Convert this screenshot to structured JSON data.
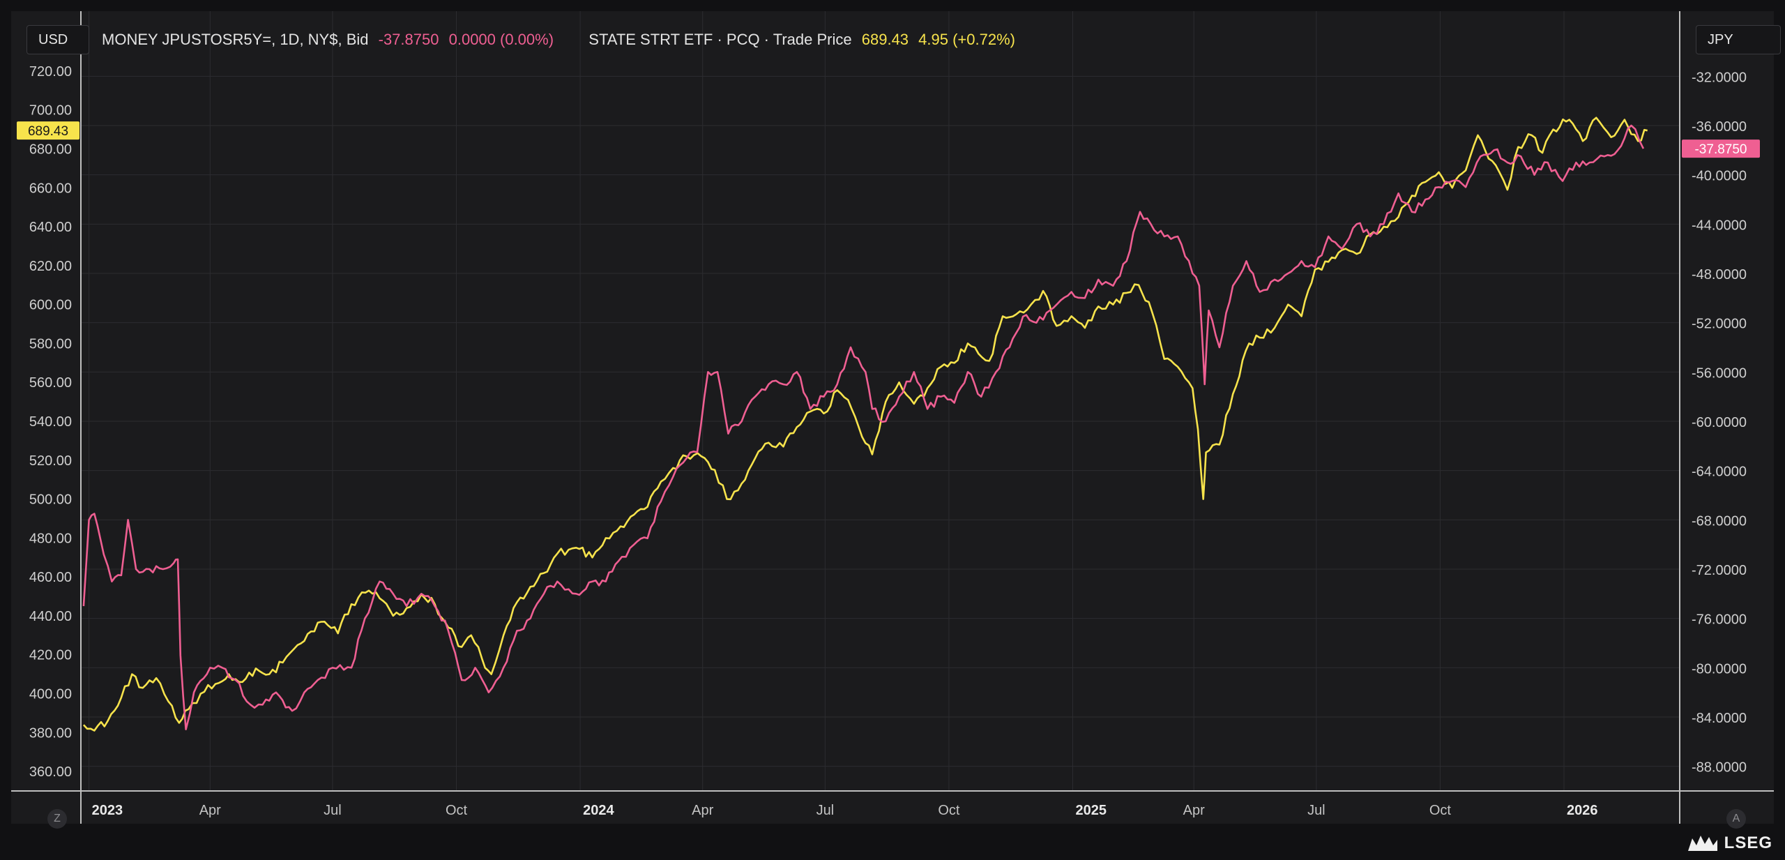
{
  "left_currency": "USD",
  "right_currency": "JPY",
  "legend": {
    "series1_name": "MONEY JPUSTOSR5Y=, 1D, NY$, Bid",
    "series1_value": "-37.8750",
    "series1_change": "0.0000 (0.00%)",
    "series2_name": "STATE STRT ETF · PCQ · Trade Price",
    "series2_value": "689.43",
    "series2_change": "4.95 (+0.72%)"
  },
  "buttons": {
    "zoom": "Z",
    "auto": "A"
  },
  "brand": "LSEG",
  "colors": {
    "pink": "#ef5f92",
    "yellow": "#f7e34c",
    "background": "#1b1b1d",
    "grid": "#2c2c30"
  },
  "chart_data": {
    "type": "line",
    "x_ticks": [
      "2023",
      "Apr",
      "Jul",
      "Oct",
      "2024",
      "Apr",
      "Jul",
      "Oct",
      "2025",
      "Apr",
      "Jul",
      "Oct",
      "2026"
    ],
    "x_ticks_bold": [
      true,
      false,
      false,
      false,
      true,
      false,
      false,
      false,
      true,
      false,
      false,
      false,
      true
    ],
    "left_axis": {
      "label": "USD",
      "ylim": [
        350,
        730
      ],
      "ticks": [
        360,
        380,
        400,
        420,
        440,
        460,
        480,
        500,
        520,
        540,
        560,
        580,
        600,
        620,
        640,
        660,
        680,
        700,
        720
      ],
      "last_value_label": "689.43"
    },
    "right_axis": {
      "label": "JPY",
      "ylim": [
        -90,
        -30
      ],
      "ticks": [
        -88,
        -84,
        -80,
        -76,
        -72,
        -68,
        -64,
        -60,
        -56,
        -52,
        -48,
        -44,
        -40,
        -36,
        -32
      ],
      "last_value_label": "-37.8750"
    },
    "series": [
      {
        "name": "STATE STRT ETF · PCQ · Trade Price",
        "axis": "left",
        "color": "#f7e34c",
        "points": [
          [
            "2022-12-28",
            384
          ],
          [
            "2023-01-05",
            381
          ],
          [
            "2023-01-15",
            386
          ],
          [
            "2023-01-25",
            398
          ],
          [
            "2023-02-02",
            410
          ],
          [
            "2023-02-10",
            403
          ],
          [
            "2023-02-20",
            408
          ],
          [
            "2023-03-01",
            396
          ],
          [
            "2023-03-09",
            385
          ],
          [
            "2023-03-16",
            392
          ],
          [
            "2023-03-25",
            400
          ],
          [
            "2023-04-05",
            405
          ],
          [
            "2023-04-15",
            410
          ],
          [
            "2023-04-25",
            406
          ],
          [
            "2023-05-05",
            413
          ],
          [
            "2023-05-15",
            410
          ],
          [
            "2023-05-25",
            416
          ],
          [
            "2023-06-05",
            425
          ],
          [
            "2023-06-15",
            432
          ],
          [
            "2023-06-25",
            437
          ],
          [
            "2023-07-05",
            431
          ],
          [
            "2023-07-15",
            446
          ],
          [
            "2023-07-28",
            453
          ],
          [
            "2023-08-05",
            449
          ],
          [
            "2023-08-15",
            440
          ],
          [
            "2023-08-25",
            444
          ],
          [
            "2023-09-05",
            451
          ],
          [
            "2023-09-15",
            446
          ],
          [
            "2023-09-25",
            434
          ],
          [
            "2023-10-05",
            424
          ],
          [
            "2023-10-12",
            430
          ],
          [
            "2023-10-20",
            418
          ],
          [
            "2023-10-27",
            410
          ],
          [
            "2023-11-05",
            430
          ],
          [
            "2023-11-15",
            447
          ],
          [
            "2023-11-25",
            455
          ],
          [
            "2023-12-05",
            462
          ],
          [
            "2023-12-15",
            472
          ],
          [
            "2023-12-29",
            475
          ],
          [
            "2024-01-10",
            470
          ],
          [
            "2024-01-20",
            480
          ],
          [
            "2024-01-31",
            486
          ],
          [
            "2024-02-10",
            492
          ],
          [
            "2024-02-20",
            496
          ],
          [
            "2024-03-01",
            509
          ],
          [
            "2024-03-10",
            516
          ],
          [
            "2024-03-20",
            522
          ],
          [
            "2024-03-31",
            522
          ],
          [
            "2024-04-10",
            515
          ],
          [
            "2024-04-19",
            500
          ],
          [
            "2024-04-30",
            508
          ],
          [
            "2024-05-10",
            521
          ],
          [
            "2024-05-20",
            529
          ],
          [
            "2024-05-31",
            527
          ],
          [
            "2024-06-10",
            537
          ],
          [
            "2024-06-20",
            545
          ],
          [
            "2024-06-30",
            544
          ],
          [
            "2024-07-10",
            556
          ],
          [
            "2024-07-18",
            551
          ],
          [
            "2024-07-26",
            537
          ],
          [
            "2024-08-05",
            523
          ],
          [
            "2024-08-15",
            550
          ],
          [
            "2024-08-25",
            560
          ],
          [
            "2024-09-05",
            549
          ],
          [
            "2024-09-15",
            557
          ],
          [
            "2024-09-25",
            568
          ],
          [
            "2024-10-05",
            570
          ],
          [
            "2024-10-15",
            580
          ],
          [
            "2024-10-31",
            571
          ],
          [
            "2024-11-10",
            594
          ],
          [
            "2024-11-20",
            595
          ],
          [
            "2024-12-01",
            600
          ],
          [
            "2024-12-10",
            607
          ],
          [
            "2024-12-20",
            589
          ],
          [
            "2024-12-31",
            594
          ],
          [
            "2025-01-10",
            588
          ],
          [
            "2025-01-20",
            599
          ],
          [
            "2025-01-31",
            600
          ],
          [
            "2025-02-10",
            606
          ],
          [
            "2025-02-19",
            610
          ],
          [
            "2025-03-01",
            596
          ],
          [
            "2025-03-10",
            572
          ],
          [
            "2025-03-20",
            568
          ],
          [
            "2025-03-31",
            557
          ],
          [
            "2025-04-04",
            536
          ],
          [
            "2025-04-08",
            500
          ],
          [
            "2025-04-10",
            524
          ],
          [
            "2025-04-20",
            528
          ],
          [
            "2025-04-30",
            554
          ],
          [
            "2025-05-12",
            580
          ],
          [
            "2025-05-20",
            583
          ],
          [
            "2025-05-31",
            588
          ],
          [
            "2025-06-10",
            600
          ],
          [
            "2025-06-20",
            594
          ],
          [
            "2025-06-30",
            618
          ],
          [
            "2025-07-10",
            622
          ],
          [
            "2025-07-20",
            628
          ],
          [
            "2025-07-31",
            626
          ],
          [
            "2025-08-10",
            636
          ],
          [
            "2025-08-20",
            640
          ],
          [
            "2025-08-31",
            645
          ],
          [
            "2025-09-10",
            656
          ],
          [
            "2025-09-20",
            663
          ],
          [
            "2025-09-30",
            668
          ],
          [
            "2025-10-10",
            660
          ],
          [
            "2025-10-20",
            669
          ],
          [
            "2025-10-29",
            687
          ],
          [
            "2025-11-06",
            675
          ],
          [
            "2025-11-14",
            668
          ],
          [
            "2025-11-20",
            659
          ],
          [
            "2025-11-28",
            681
          ],
          [
            "2025-12-08",
            687
          ],
          [
            "2025-12-16",
            678
          ],
          [
            "2025-12-24",
            690
          ],
          [
            "2026-01-05",
            695
          ],
          [
            "2026-01-15",
            684
          ],
          [
            "2026-01-25",
            696
          ],
          [
            "2026-02-05",
            686
          ],
          [
            "2026-02-15",
            695
          ],
          [
            "2026-02-25",
            684
          ],
          [
            "2026-03-04",
            689.43
          ]
        ]
      },
      {
        "name": "MONEY JPUSTOSR5Y=, 1D, NY$, Bid",
        "axis": "right",
        "color": "#ef5f92",
        "points": [
          [
            "2022-12-28",
            -75
          ],
          [
            "2023-01-01",
            -68
          ],
          [
            "2023-01-05",
            -67.5
          ],
          [
            "2023-01-12",
            -70.8
          ],
          [
            "2023-01-18",
            -73
          ],
          [
            "2023-01-25",
            -72.5
          ],
          [
            "2023-01-30",
            -68
          ],
          [
            "2023-02-05",
            -72
          ],
          [
            "2023-02-15",
            -72
          ],
          [
            "2023-02-25",
            -72
          ],
          [
            "2023-03-05",
            -71.5
          ],
          [
            "2023-03-08",
            -71.2
          ],
          [
            "2023-03-10",
            -79
          ],
          [
            "2023-03-14",
            -85
          ],
          [
            "2023-03-20",
            -82
          ],
          [
            "2023-04-01",
            -80
          ],
          [
            "2023-04-10",
            -80
          ],
          [
            "2023-04-20",
            -81
          ],
          [
            "2023-05-01",
            -83
          ],
          [
            "2023-05-10",
            -83
          ],
          [
            "2023-05-20",
            -82
          ],
          [
            "2023-06-01",
            -83.5
          ],
          [
            "2023-06-10",
            -82
          ],
          [
            "2023-06-20",
            -81
          ],
          [
            "2023-07-01",
            -80
          ],
          [
            "2023-07-15",
            -80
          ],
          [
            "2023-07-25",
            -76
          ],
          [
            "2023-08-05",
            -73
          ],
          [
            "2023-08-15",
            -74
          ],
          [
            "2023-08-25",
            -75
          ],
          [
            "2023-09-05",
            -74
          ],
          [
            "2023-09-15",
            -75
          ],
          [
            "2023-09-25",
            -77
          ],
          [
            "2023-10-05",
            -81
          ],
          [
            "2023-10-15",
            -80
          ],
          [
            "2023-10-25",
            -82
          ],
          [
            "2023-11-05",
            -80
          ],
          [
            "2023-11-15",
            -77
          ],
          [
            "2023-11-25",
            -76
          ],
          [
            "2023-12-05",
            -74
          ],
          [
            "2023-12-15",
            -73
          ],
          [
            "2023-12-29",
            -74
          ],
          [
            "2024-01-10",
            -73
          ],
          [
            "2024-01-20",
            -73
          ],
          [
            "2024-02-01",
            -71
          ],
          [
            "2024-02-10",
            -70
          ],
          [
            "2024-02-20",
            -69.5
          ],
          [
            "2024-03-01",
            -66.5
          ],
          [
            "2024-03-10",
            -64.5
          ],
          [
            "2024-03-20",
            -63
          ],
          [
            "2024-03-28",
            -62.5
          ],
          [
            "2024-04-05",
            -56
          ],
          [
            "2024-04-12",
            -56
          ],
          [
            "2024-04-20",
            -61
          ],
          [
            "2024-04-30",
            -60
          ],
          [
            "2024-05-10",
            -58
          ],
          [
            "2024-05-20",
            -57
          ],
          [
            "2024-05-31",
            -57
          ],
          [
            "2024-06-10",
            -56
          ],
          [
            "2024-06-20",
            -59
          ],
          [
            "2024-06-30",
            -58
          ],
          [
            "2024-07-10",
            -57
          ],
          [
            "2024-07-20",
            -54
          ],
          [
            "2024-07-31",
            -56
          ],
          [
            "2024-08-05",
            -59
          ],
          [
            "2024-08-15",
            -60
          ],
          [
            "2024-08-25",
            -58
          ],
          [
            "2024-09-05",
            -56
          ],
          [
            "2024-09-15",
            -59
          ],
          [
            "2024-09-25",
            -58
          ],
          [
            "2024-10-05",
            -58.5
          ],
          [
            "2024-10-15",
            -56
          ],
          [
            "2024-10-25",
            -58
          ],
          [
            "2024-11-05",
            -56
          ],
          [
            "2024-11-15",
            -54
          ],
          [
            "2024-11-25",
            -51.5
          ],
          [
            "2024-12-05",
            -52
          ],
          [
            "2024-12-15",
            -51
          ],
          [
            "2024-12-31",
            -49.5
          ],
          [
            "2025-01-10",
            -50
          ],
          [
            "2025-01-20",
            -48.5
          ],
          [
            "2025-01-31",
            -49
          ],
          [
            "2025-02-10",
            -47
          ],
          [
            "2025-02-20",
            -43
          ],
          [
            "2025-02-28",
            -44
          ],
          [
            "2025-03-10",
            -45
          ],
          [
            "2025-03-20",
            -45
          ],
          [
            "2025-03-31",
            -48
          ],
          [
            "2025-04-05",
            -49
          ],
          [
            "2025-04-09",
            -57
          ],
          [
            "2025-04-12",
            -51
          ],
          [
            "2025-04-20",
            -54
          ],
          [
            "2025-04-30",
            -49
          ],
          [
            "2025-05-10",
            -47
          ],
          [
            "2025-05-20",
            -49.5
          ],
          [
            "2025-05-31",
            -48.5
          ],
          [
            "2025-06-10",
            -48
          ],
          [
            "2025-06-20",
            -47
          ],
          [
            "2025-06-30",
            -47.5
          ],
          [
            "2025-07-10",
            -45
          ],
          [
            "2025-07-20",
            -46
          ],
          [
            "2025-07-31",
            -44
          ],
          [
            "2025-08-10",
            -45
          ],
          [
            "2025-08-20",
            -44
          ],
          [
            "2025-08-31",
            -41.5
          ],
          [
            "2025-09-10",
            -43
          ],
          [
            "2025-09-20",
            -42
          ],
          [
            "2025-09-30",
            -41
          ],
          [
            "2025-10-10",
            -40.5
          ],
          [
            "2025-10-20",
            -41
          ],
          [
            "2025-10-31",
            -38.5
          ],
          [
            "2025-11-10",
            -38
          ],
          [
            "2025-11-20",
            -39
          ],
          [
            "2025-11-30",
            -38.5
          ],
          [
            "2025-12-10",
            -40
          ],
          [
            "2025-12-20",
            -39
          ],
          [
            "2025-12-31",
            -40.5
          ],
          [
            "2026-01-10",
            -39
          ],
          [
            "2026-01-20",
            -39
          ],
          [
            "2026-01-31",
            -38.5
          ],
          [
            "2026-02-10",
            -38
          ],
          [
            "2026-02-20",
            -36
          ],
          [
            "2026-03-01",
            -37.875
          ]
        ]
      }
    ]
  }
}
